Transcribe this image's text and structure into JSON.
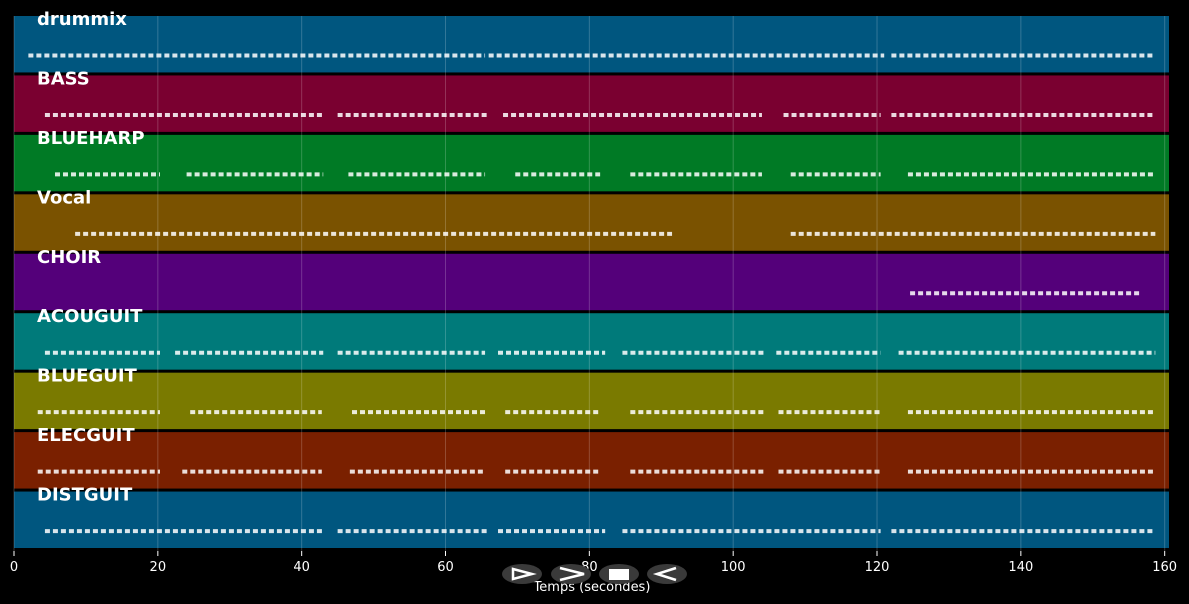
{
  "chart_data": {
    "type": "timeline",
    "x_label": "Temps (secondes)",
    "xlim": [
      0,
      160.6
    ],
    "xticks": [
      0,
      20,
      40,
      60,
      80,
      100,
      120,
      140,
      160
    ],
    "grid": true,
    "series": [
      {
        "name": "drummix",
        "color": "#00567f",
        "segments": [
          [
            2,
            65.5
          ],
          [
            66,
            121
          ],
          [
            122,
            158.7
          ]
        ]
      },
      {
        "name": "BASS",
        "color": "#7a0030",
        "segments": [
          [
            4.3,
            43
          ],
          [
            45,
            66
          ],
          [
            68,
            104
          ],
          [
            107,
            120.5
          ],
          [
            122,
            158.7
          ]
        ]
      },
      {
        "name": "BLUEHARP",
        "color": "#007a25",
        "segments": [
          [
            5.7,
            20.3
          ],
          [
            24,
            43
          ],
          [
            46.5,
            65.5
          ],
          [
            69.7,
            81.5
          ],
          [
            85.7,
            104
          ],
          [
            108,
            120.5
          ],
          [
            124.3,
            158.7
          ]
        ]
      },
      {
        "name": "Vocal",
        "color": "#7a5200",
        "segments": [
          [
            8.5,
            91.5
          ],
          [
            108,
            158.7
          ]
        ]
      },
      {
        "name": "CHOIR",
        "color": "#54007a",
        "segments": [
          [
            124.6,
            156.6
          ]
        ]
      },
      {
        "name": "ACOUGUIT",
        "color": "#007a7a",
        "segments": [
          [
            4.3,
            20.3
          ],
          [
            22.4,
            43
          ],
          [
            45,
            65.5
          ],
          [
            67.3,
            82.2
          ],
          [
            84.6,
            104.5
          ],
          [
            106,
            120.5
          ],
          [
            123,
            158.7
          ]
        ]
      },
      {
        "name": "BLUEGUIT",
        "color": "#7a7a00",
        "segments": [
          [
            3.3,
            20.3
          ],
          [
            24.5,
            42.8
          ],
          [
            47,
            65.5
          ],
          [
            68.3,
            81.5
          ],
          [
            85.7,
            104.5
          ],
          [
            106.3,
            120.5
          ],
          [
            124.3,
            158.7
          ]
        ]
      },
      {
        "name": "ELECGUIT",
        "color": "#7a2000",
        "segments": [
          [
            3.3,
            20.3
          ],
          [
            23.4,
            42.8
          ],
          [
            46.7,
            65.5
          ],
          [
            68.3,
            81.5
          ],
          [
            85.7,
            104.5
          ],
          [
            106.3,
            120.5
          ],
          [
            124.3,
            158.7
          ]
        ]
      },
      {
        "name": "DISTGUIT",
        "color": "#00567f",
        "segments": [
          [
            4.3,
            43
          ],
          [
            45,
            66
          ],
          [
            67.3,
            82.2
          ],
          [
            84.6,
            120.5
          ],
          [
            122,
            158.7
          ]
        ]
      }
    ]
  }
}
